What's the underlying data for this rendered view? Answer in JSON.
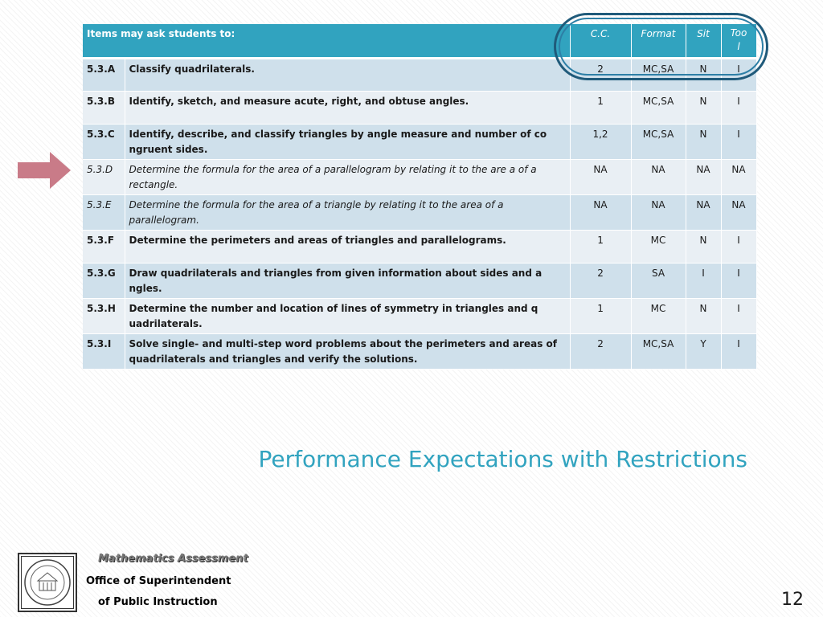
{
  "table": {
    "headers": {
      "items": "Items may ask students to:",
      "cc": "C.C.",
      "format": "Format",
      "sit": "Sit",
      "tool": "Too\nl"
    },
    "rows": [
      {
        "code": "5.3.A",
        "desc": "Classify quadrilaterals.",
        "cc": "2",
        "format": "MC,SA",
        "sit": "N",
        "tool": "I",
        "italic": false
      },
      {
        "code": "5.3.B",
        "desc": "Identify, sketch, and measure acute, right, and obtuse angles.",
        "cc": "1",
        "format": "MC,SA",
        "sit": "N",
        "tool": "I",
        "italic": false
      },
      {
        "code": "5.3.C",
        "desc": "Identify, describe, and classify triangles by angle measure and number of co ngruent sides.",
        "cc": "1,2",
        "format": "MC,SA",
        "sit": "N",
        "tool": "I",
        "italic": false
      },
      {
        "code": "5.3.D",
        "desc": "Determine the formula for the area of a parallelogram by relating it to the are a of a rectangle.",
        "cc": "NA",
        "format": "NA",
        "sit": "NA",
        "tool": "NA",
        "italic": true
      },
      {
        "code": "5.3.E",
        "desc": "Determine the formula for the area of a triangle by relating it to the area of a parallelogram.",
        "cc": "NA",
        "format": "NA",
        "sit": "NA",
        "tool": "NA",
        "italic": true
      },
      {
        "code": "5.3.F",
        "desc": "Determine the perimeters and areas of triangles and parallelograms.",
        "cc": "1",
        "format": "MC",
        "sit": "N",
        "tool": "I",
        "italic": false
      },
      {
        "code": "5.3.G",
        "desc": "Draw quadrilaterals and triangles from given information about sides and a ngles.",
        "cc": "2",
        "format": "SA",
        "sit": "I",
        "tool": "I",
        "italic": false
      },
      {
        "code": "5.3.H",
        "desc": "Determine the number and location of lines of symmetry in triangles and q uadrilaterals.",
        "cc": "1",
        "format": "MC",
        "sit": "N",
        "tool": "I",
        "italic": false
      },
      {
        "code": "5.3.I",
        "desc": "Solve single- and multi-step word problems about the perimeters and areas of quadrilaterals and triangles and verify the solutions.",
        "cc": "2",
        "format": "MC,SA",
        "sit": "Y",
        "tool": "I",
        "italic": false
      }
    ]
  },
  "title": "Performance Expectations with Restrictions",
  "footer": {
    "brand": "Mathematics Assessment",
    "line1": "Office of Superintendent",
    "line2": "of Public Instruction"
  },
  "page_number": "12",
  "colors": {
    "header_bg": "#31a3bf",
    "row_odd": "#cfe0eb",
    "row_even": "#e9eff4",
    "arrow": "#c97b88",
    "circle": "#1f5a7a",
    "title": "#31a3bf"
  },
  "icons": {
    "arrow": "right-arrow-icon",
    "seal": "state-seal-icon"
  }
}
